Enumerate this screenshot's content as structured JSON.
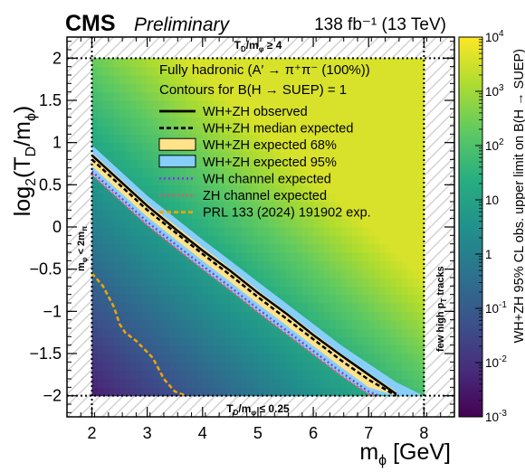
{
  "header": {
    "experiment": "CMS",
    "status": "Preliminary",
    "lumi": "138 fb⁻¹ (13 TeV)"
  },
  "chart_data": {
    "type": "heatmap",
    "title": "",
    "xlabel": "mφ [GeV]",
    "ylabel": "log₂(T_D/mφ)",
    "zlabel": "WH+ZH 95% CL obs. upper limit on B(H → SUEP)",
    "xlim": [
      1.55,
      8.55
    ],
    "ylim": [
      -2.25,
      2.25
    ],
    "zlim": [
      0.001,
      10000
    ],
    "zscale": "log",
    "x_ticks": [
      2,
      3,
      4,
      5,
      6,
      7,
      8
    ],
    "y_ticks": [
      -2,
      -1.5,
      -1,
      -0.5,
      0,
      0.5,
      1,
      1.5,
      2
    ],
    "y_tick_labels": [
      "−2",
      "−1.5",
      "−1",
      "−0.5",
      "0",
      "0.5",
      "1",
      "1.5",
      "2"
    ],
    "z_ticks": [
      {
        "value": 0.001,
        "base": "10",
        "exp": "-3"
      },
      {
        "value": 0.01,
        "base": "10",
        "exp": "-2"
      },
      {
        "value": 0.1,
        "base": "10",
        "exp": "-1"
      },
      {
        "value": 1,
        "base": "1",
        "exp": ""
      },
      {
        "value": 10,
        "base": "10",
        "exp": ""
      },
      {
        "value": 100,
        "base": "10",
        "exp": "2"
      },
      {
        "value": 1000,
        "base": "10",
        "exp": "3"
      },
      {
        "value": 10000,
        "base": "10",
        "exp": "4"
      }
    ],
    "scan_region": {
      "x": [
        2,
        8
      ],
      "y": [
        -2,
        2
      ]
    },
    "legend_header": [
      "Fully hadronic (A′ → π⁺π⁻ (100%))",
      "Contours for B(H → SUEP) = 1"
    ],
    "legend_placement": "upper-center",
    "series": [
      {
        "name": "WH+ZH observed",
        "style": "solid",
        "color": "#000000",
        "x": [
          2.0,
          2.5,
          3.0,
          3.5,
          4.0,
          4.5,
          5.0,
          5.5,
          6.0,
          6.5,
          7.0,
          7.5
        ],
        "y": [
          0.85,
          0.55,
          0.25,
          -0.02,
          -0.28,
          -0.52,
          -0.78,
          -1.02,
          -1.28,
          -1.52,
          -1.75,
          -1.98
        ]
      },
      {
        "name": "WH+ZH median expected",
        "style": "dashed",
        "color": "#000000",
        "x": [
          2.0,
          2.5,
          3.0,
          3.5,
          4.0,
          4.5,
          5.0,
          5.5,
          6.0,
          6.5,
          7.0,
          7.5
        ],
        "y": [
          0.8,
          0.5,
          0.2,
          -0.06,
          -0.32,
          -0.57,
          -0.83,
          -1.08,
          -1.33,
          -1.58,
          -1.81,
          -2.0
        ]
      },
      {
        "name": "WH+ZH expected 68%",
        "style": "band",
        "color": "#ffe28a",
        "x": [
          2.0,
          2.5,
          3.0,
          3.5,
          4.0,
          4.5,
          5.0,
          5.5,
          6.0,
          6.5,
          7.0,
          7.5
        ],
        "y_low": [
          0.72,
          0.42,
          0.12,
          -0.14,
          -0.4,
          -0.65,
          -0.91,
          -1.16,
          -1.41,
          -1.66,
          -1.9,
          -2.0
        ],
        "y_high": [
          0.88,
          0.58,
          0.28,
          0.02,
          -0.24,
          -0.49,
          -0.75,
          -1.0,
          -1.25,
          -1.5,
          -1.73,
          -1.95
        ]
      },
      {
        "name": "WH+ZH expected 95%",
        "style": "band",
        "color": "#87cefa",
        "x": [
          2.0,
          2.5,
          3.0,
          3.5,
          4.0,
          4.5,
          5.0,
          5.5,
          6.0,
          6.5,
          7.0,
          7.5,
          8.0
        ],
        "y_low": [
          0.62,
          0.32,
          0.02,
          -0.24,
          -0.5,
          -0.75,
          -1.01,
          -1.26,
          -1.51,
          -1.76,
          -1.98,
          -2.0,
          -2.0
        ],
        "y_high": [
          0.97,
          0.67,
          0.37,
          0.11,
          -0.15,
          -0.4,
          -0.65,
          -0.9,
          -1.15,
          -1.4,
          -1.62,
          -1.84,
          -2.0
        ]
      },
      {
        "name": "WH channel expected",
        "style": "dotted",
        "color": "#7b3fe4",
        "x": [
          2.0,
          2.5,
          3.0,
          3.5,
          4.0,
          4.5,
          5.0,
          5.5,
          6.0,
          6.5,
          7.0,
          7.2
        ],
        "y": [
          0.66,
          0.36,
          0.06,
          -0.2,
          -0.46,
          -0.71,
          -0.97,
          -1.22,
          -1.47,
          -1.72,
          -1.95,
          -2.0
        ]
      },
      {
        "name": "ZH channel expected",
        "style": "dotted",
        "color": "#e8556d",
        "x": [
          2.0,
          2.5,
          3.0,
          3.5,
          4.0,
          4.5,
          5.0,
          5.5,
          6.0,
          6.5,
          7.0,
          7.1
        ],
        "y": [
          0.62,
          0.32,
          0.02,
          -0.24,
          -0.5,
          -0.75,
          -1.01,
          -1.26,
          -1.51,
          -1.76,
          -1.98,
          -2.0
        ]
      },
      {
        "name": "PRL 133 (2024) 191902 exp.",
        "style": "dashed",
        "color": "#f0a500",
        "x": [
          2.0,
          2.2,
          2.4,
          2.5,
          2.6,
          2.8,
          3.1,
          3.3,
          3.5,
          3.7
        ],
        "y": [
          -0.55,
          -0.7,
          -0.95,
          -1.15,
          -1.25,
          -1.35,
          -1.55,
          -1.8,
          -1.95,
          -2.0
        ]
      }
    ],
    "annotations": [
      {
        "text_parts": [
          "T",
          "D",
          "/m",
          "φ",
          " ≥ 4"
        ],
        "placement": "top-center"
      },
      {
        "text_parts": [
          "T",
          "D",
          "/m",
          "φ",
          " ≤ 0.25"
        ],
        "placement": "bottom-center"
      },
      {
        "text_parts": [
          "m",
          "φ",
          " < 2m",
          "π"
        ],
        "placement": "left-vertical"
      },
      {
        "text_parts": [
          "few high p",
          "T",
          " tracks"
        ],
        "placement": "right-vertical"
      }
    ]
  },
  "colors": {
    "axis": "#000000",
    "hatch": "#d2d2d2",
    "colormap": [
      "#440154",
      "#472d7b",
      "#3b528b",
      "#2c728e",
      "#21918c",
      "#28ae80",
      "#5ec962",
      "#addc30",
      "#fde725"
    ]
  }
}
